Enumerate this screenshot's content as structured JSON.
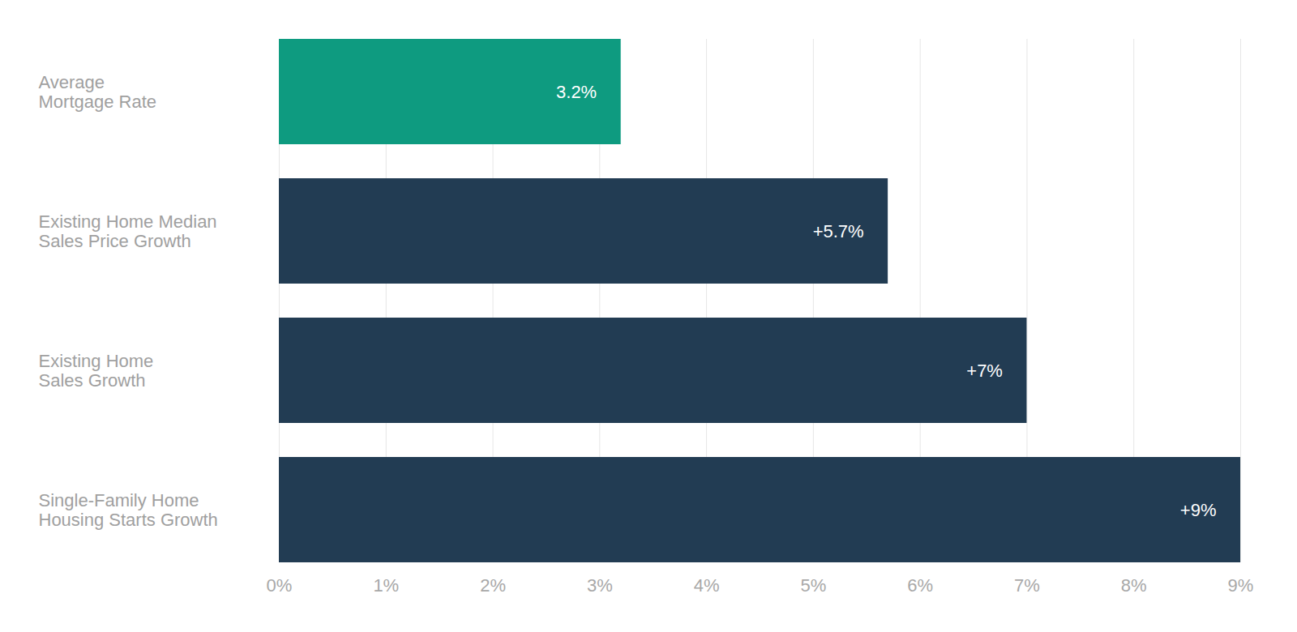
{
  "chart_data": {
    "type": "bar",
    "orientation": "horizontal",
    "categories": [
      "Average Mortgage Rate",
      "Existing Home Median Sales Price Growth",
      "Existing Home Sales Growth",
      "Single-Family Home Housing Starts Growth"
    ],
    "values": [
      3.2,
      5.7,
      7,
      9
    ],
    "value_labels": [
      "3.2%",
      "+5.7%",
      "+7%",
      "+9%"
    ],
    "colors": [
      "#0e9b80",
      "#223c53",
      "#223c53",
      "#223c53"
    ],
    "xlim": [
      0,
      9
    ],
    "xticks": [
      {
        "value": 0,
        "label": "0%"
      },
      {
        "value": 1,
        "label": "1%"
      },
      {
        "value": 2,
        "label": "2%"
      },
      {
        "value": 3,
        "label": "3%"
      },
      {
        "value": 4,
        "label": "4%"
      },
      {
        "value": 5,
        "label": "5%"
      },
      {
        "value": 6,
        "label": "6%"
      },
      {
        "value": 7,
        "label": "7%"
      },
      {
        "value": 8,
        "label": "8%"
      },
      {
        "value": 9,
        "label": "9%"
      }
    ],
    "grid": true,
    "data_labels": true
  }
}
